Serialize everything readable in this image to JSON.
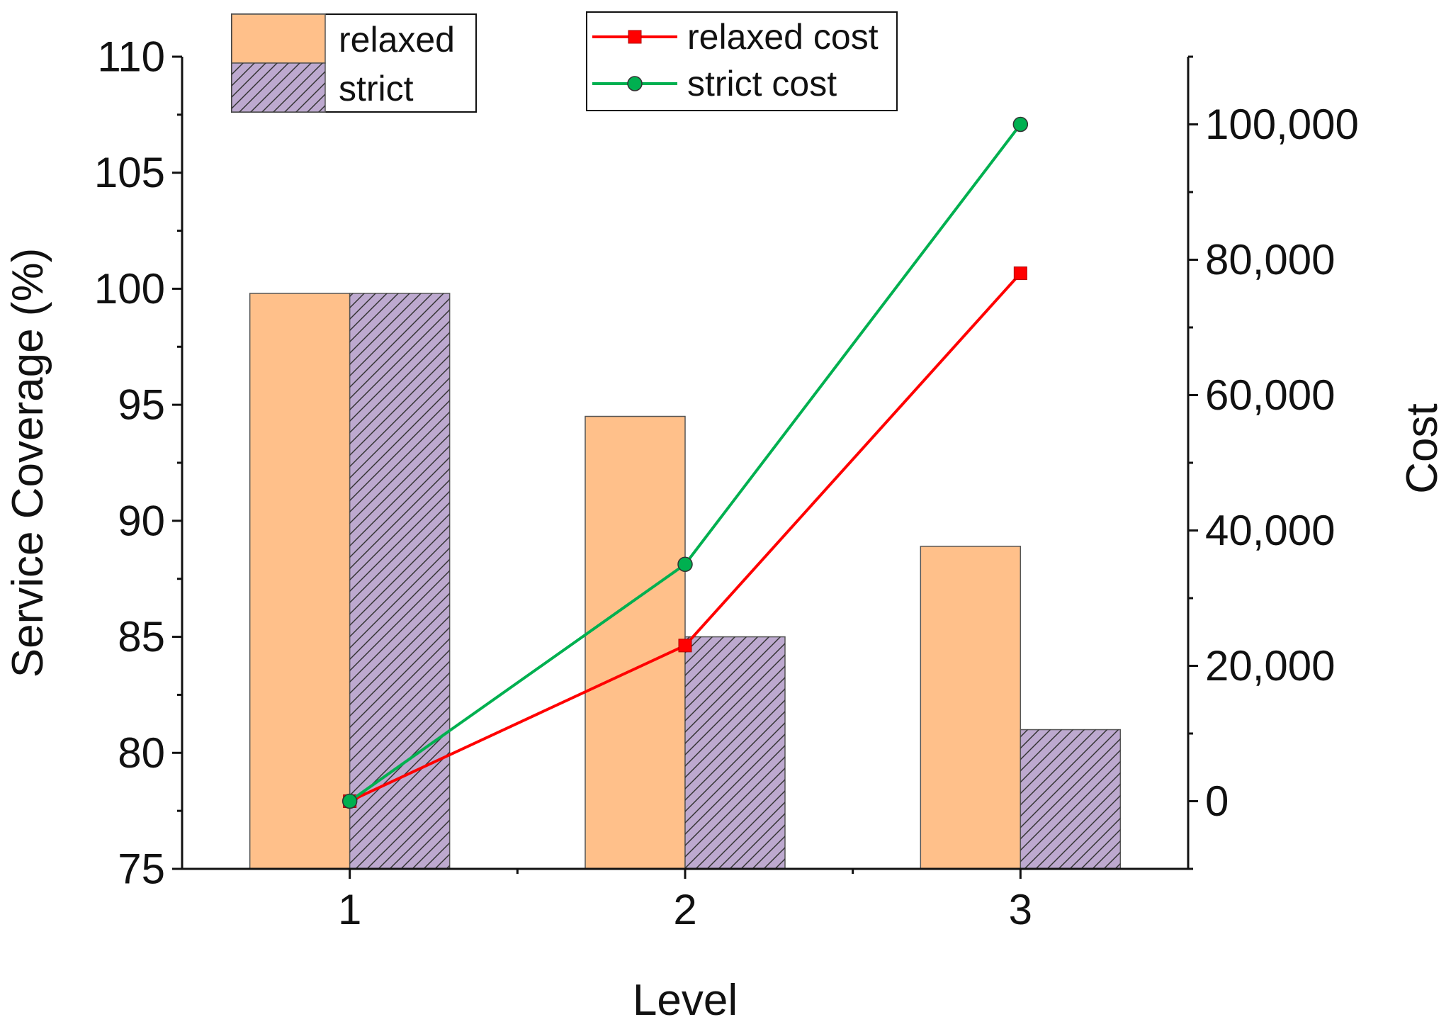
{
  "chart_data": {
    "type": "bar",
    "categories": [
      "1",
      "2",
      "3"
    ],
    "xlabel": "Level",
    "ylabel": "Service Coverage (%)",
    "y2label": "Cost",
    "ylim": [
      75,
      110
    ],
    "yticks": [
      "75",
      "80",
      "85",
      "90",
      "95",
      "100",
      "105",
      "110"
    ],
    "y2lim": [
      -10000,
      110000
    ],
    "y2ticks": [
      "0",
      "20,000",
      "40,000",
      "60,000",
      "80,000",
      "100,000"
    ],
    "series": [
      {
        "name": "relaxed",
        "kind": "bar",
        "axis": "left",
        "values": [
          99.8,
          94.5,
          88.9
        ],
        "color": "#FFC08A",
        "pattern": "none"
      },
      {
        "name": "strict",
        "kind": "bar",
        "axis": "left",
        "values": [
          99.8,
          85.0,
          81.0
        ],
        "color": "#BDA9CF",
        "pattern": "diagonal-hatch"
      },
      {
        "name": "relaxed cost",
        "kind": "line",
        "axis": "right",
        "values": [
          0,
          23000,
          78000
        ],
        "color": "#FF0000",
        "marker": "square"
      },
      {
        "name": "strict cost",
        "kind": "line",
        "axis": "right",
        "values": [
          0,
          35000,
          100000
        ],
        "color": "#00B050",
        "marker": "circle"
      }
    ],
    "legends": [
      {
        "position": "top-left",
        "entries": [
          "relaxed",
          "strict"
        ]
      },
      {
        "position": "top-center",
        "entries": [
          "relaxed cost",
          "strict cost"
        ]
      }
    ],
    "grid": false
  }
}
